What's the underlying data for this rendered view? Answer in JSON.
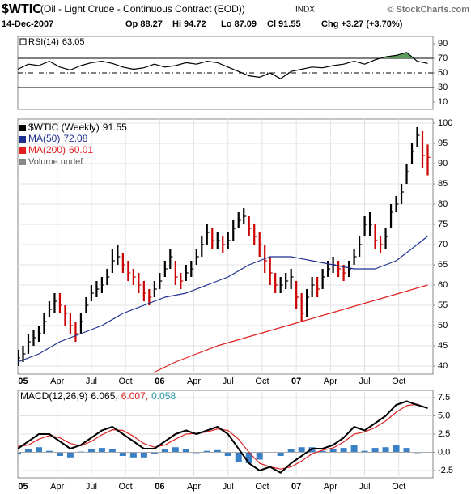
{
  "header": {
    "symbol": "$WTIC",
    "description": "(Oil - Light Crude - Continuous Contract (EOD))",
    "exchange": "INDX",
    "source": "© StockCharts.com",
    "date": "14-Dec-2007",
    "open": "Op 88.27",
    "high": "Hi 94.72",
    "low": "Lo 87.09",
    "close": "Cl 91.55",
    "change": "Chg +3.27 (+3.70%)"
  },
  "chart_data": [
    {
      "type": "line",
      "xlim": [
        -2,
        156
      ],
      "ylim": [
        0,
        100
      ],
      "yticks": [
        10,
        30,
        50,
        70,
        90
      ],
      "solid_levels": [
        30,
        70
      ],
      "dashed_levels": [
        50
      ],
      "fill_above": 70,
      "fill_color": "#5b9b5b",
      "series": [
        {
          "name": "RSI(14)",
          "label": "63.05",
          "color": "#000000",
          "x": [
            -2,
            2,
            6,
            10,
            14,
            18,
            22,
            26,
            30,
            34,
            38,
            42,
            46,
            50,
            54,
            58,
            62,
            66,
            70,
            74,
            78,
            82,
            86,
            90,
            94,
            98,
            102,
            106,
            110,
            114,
            118,
            122,
            126,
            130,
            134,
            138,
            142,
            146,
            150,
            154
          ],
          "values": [
            55,
            62,
            60,
            66,
            58,
            54,
            60,
            64,
            66,
            63,
            58,
            55,
            57,
            62,
            58,
            60,
            64,
            62,
            66,
            64,
            58,
            52,
            46,
            44,
            50,
            42,
            52,
            55,
            58,
            57,
            60,
            62,
            66,
            62,
            68,
            72,
            74,
            78,
            66,
            63.05
          ]
        }
      ]
    },
    {
      "type": "ohlc",
      "xlim": [
        -2,
        156
      ],
      "ylim": [
        38,
        101
      ],
      "yticks": [
        40,
        45,
        50,
        55,
        60,
        65,
        70,
        75,
        80,
        85,
        90,
        95,
        100
      ],
      "grid": true,
      "xticks": [
        {
          "value": 0,
          "label": "05"
        },
        {
          "value": 13,
          "label": "Apr"
        },
        {
          "value": 26,
          "label": "Jul"
        },
        {
          "value": 39,
          "label": "Oct"
        },
        {
          "value": 52,
          "label": "06"
        },
        {
          "value": 65,
          "label": "Apr"
        },
        {
          "value": 78,
          "label": "Jul"
        },
        {
          "value": 91,
          "label": "Oct"
        },
        {
          "value": 104,
          "label": "07"
        },
        {
          "value": 117,
          "label": "Apr"
        },
        {
          "value": 130,
          "label": "Jul"
        },
        {
          "value": 143,
          "label": "Oct"
        }
      ],
      "bars": {
        "name": "$WTIC (Weekly)",
        "label": "91.55",
        "up_color": "#000000",
        "down_color": "#cc0000",
        "x": [
          -2,
          0,
          2,
          4,
          6,
          8,
          10,
          12,
          14,
          16,
          18,
          20,
          22,
          24,
          26,
          28,
          30,
          32,
          34,
          36,
          38,
          40,
          42,
          44,
          46,
          48,
          50,
          52,
          54,
          56,
          58,
          60,
          62,
          64,
          66,
          68,
          70,
          72,
          74,
          76,
          78,
          80,
          82,
          84,
          86,
          88,
          90,
          92,
          94,
          96,
          98,
          100,
          102,
          104,
          106,
          108,
          110,
          112,
          114,
          116,
          118,
          120,
          122,
          124,
          126,
          128,
          130,
          132,
          134,
          136,
          138,
          140,
          142,
          144,
          146,
          148,
          150,
          152,
          154
        ],
        "high": [
          44,
          45,
          48,
          49,
          50,
          53,
          56,
          58,
          58,
          55,
          53,
          51,
          53,
          57,
          60,
          61,
          62,
          64,
          69,
          70,
          68,
          66,
          64,
          63,
          61,
          59,
          61,
          63,
          66,
          69,
          66,
          63,
          65,
          66,
          69,
          72,
          75,
          74,
          73,
          72,
          73,
          76,
          78,
          79,
          77,
          75,
          73,
          70,
          67,
          63,
          62,
          63,
          64,
          61,
          58,
          59,
          62,
          62,
          64,
          66,
          67,
          66,
          65,
          66,
          69,
          72,
          77,
          78,
          75,
          72,
          74,
          80,
          82,
          85,
          90,
          95,
          99,
          98,
          94.72
        ],
        "low": [
          40,
          41,
          43,
          45,
          46,
          48,
          52,
          53,
          53,
          50,
          48,
          46,
          48,
          53,
          56,
          57,
          58,
          60,
          63,
          65,
          63,
          61,
          60,
          58,
          56,
          55,
          57,
          59,
          62,
          64,
          60,
          59,
          61,
          62,
          65,
          67,
          70,
          69,
          69,
          68,
          69,
          71,
          74,
          75,
          72,
          70,
          67,
          63,
          60,
          58,
          58,
          59,
          59,
          54,
          51,
          52,
          57,
          57,
          59,
          62,
          63,
          62,
          61,
          62,
          65,
          67,
          72,
          72,
          69,
          68,
          69,
          74,
          78,
          80,
          85,
          90,
          94,
          89,
          87.09
        ],
        "values": [
          42,
          43,
          46,
          47,
          48,
          51,
          54,
          56,
          55,
          53,
          50,
          48,
          51,
          55,
          58,
          59,
          60,
          62,
          66,
          67,
          65,
          63,
          62,
          60,
          58,
          57,
          59,
          61,
          64,
          67,
          62,
          61,
          63,
          64,
          67,
          70,
          73,
          71,
          71,
          70,
          71,
          74,
          76,
          77,
          74,
          72,
          70,
          66,
          63,
          60,
          60,
          61,
          62,
          57,
          53,
          57,
          60,
          59,
          62,
          64,
          65,
          64,
          63,
          64,
          67,
          70,
          75,
          75,
          71,
          70,
          72,
          78,
          80,
          83,
          88,
          93,
          97,
          92,
          91.55
        ]
      },
      "series": [
        {
          "name": "MA(50)",
          "label": "72.08",
          "color": "#1f2f8f",
          "x": [
            -2,
            6,
            14,
            22,
            30,
            38,
            46,
            54,
            62,
            70,
            78,
            86,
            94,
            102,
            110,
            118,
            126,
            134,
            142,
            150,
            154
          ],
          "values": [
            41,
            43,
            46,
            48,
            50,
            53,
            55,
            57,
            58,
            60,
            62,
            65,
            67,
            67,
            66,
            65,
            64,
            64,
            66,
            70,
            72.08
          ]
        },
        {
          "name": "MA(200)",
          "label": "60.01",
          "color": "#e02020",
          "x": [
            50,
            58,
            66,
            74,
            82,
            90,
            98,
            106,
            114,
            122,
            130,
            138,
            146,
            154
          ],
          "values": [
            38.5,
            41,
            43,
            45,
            46.5,
            48,
            49.5,
            51,
            52.5,
            54,
            55.5,
            57,
            58.5,
            60.01
          ]
        }
      ],
      "volume_label": "Volume undef"
    },
    {
      "type": "line",
      "title": "MACD(12,26,9)",
      "xlim": [
        -2,
        156
      ],
      "ylim": [
        -3.5,
        8.5
      ],
      "grid": true,
      "yticks": [
        {
          "value": -2.5,
          "label": "-2.5"
        },
        {
          "value": 0,
          "label": "0.0"
        },
        {
          "value": 2.5,
          "label": "2.5"
        },
        {
          "value": 5,
          "label": "5.0"
        },
        {
          "value": 7.5,
          "label": "7.5"
        }
      ],
      "xticks": [
        {
          "value": 0,
          "label": "05"
        },
        {
          "value": 13,
          "label": "Apr"
        },
        {
          "value": 26,
          "label": "Jul"
        },
        {
          "value": 39,
          "label": "Oct"
        },
        {
          "value": 52,
          "label": "06"
        },
        {
          "value": 65,
          "label": "Apr"
        },
        {
          "value": 78,
          "label": "Jul"
        },
        {
          "value": 91,
          "label": "Oct"
        },
        {
          "value": 104,
          "label": "07"
        },
        {
          "value": 117,
          "label": "Apr"
        },
        {
          "value": 130,
          "label": "Jul"
        },
        {
          "value": 143,
          "label": "Oct"
        }
      ],
      "series": [
        {
          "label": "0.058",
          "style": "bar",
          "color": "#3a80c4",
          "x": [
            -2,
            2,
            6,
            10,
            14,
            18,
            22,
            26,
            30,
            34,
            38,
            42,
            46,
            50,
            54,
            58,
            62,
            66,
            70,
            74,
            78,
            82,
            86,
            90,
            94,
            98,
            102,
            106,
            110,
            114,
            118,
            122,
            126,
            130,
            134,
            138,
            142,
            146,
            150,
            154
          ],
          "values": [
            -0.3,
            0.5,
            0.7,
            0.2,
            -0.5,
            -0.7,
            0.1,
            0.5,
            0.6,
            0.4,
            -0.5,
            -0.7,
            -0.7,
            -0.2,
            0.5,
            0.7,
            0.5,
            -0.1,
            0.2,
            0.3,
            -0.5,
            -1.3,
            -1.5,
            -1.0,
            0,
            -0.5,
            0.5,
            0.7,
            0.7,
            0.2,
            0.4,
            0.6,
            1.0,
            0.2,
            0.6,
            0.7,
            1.0,
            0.6,
            -0.1,
            0.058
          ]
        },
        {
          "label": "6.007,",
          "color": "#dd2222",
          "width": 1.2,
          "x": [
            -2,
            2,
            6,
            10,
            14,
            18,
            22,
            26,
            30,
            34,
            38,
            42,
            46,
            50,
            54,
            58,
            62,
            66,
            70,
            74,
            78,
            82,
            86,
            90,
            94,
            98,
            102,
            106,
            110,
            114,
            118,
            122,
            126,
            130,
            134,
            138,
            142,
            146,
            150,
            154
          ],
          "values": [
            0.8,
            1.0,
            1.8,
            2.3,
            2.0,
            1.2,
            0.9,
            1.5,
            2.4,
            3.1,
            3.0,
            2.2,
            1.2,
            0.7,
            1.0,
            1.8,
            2.5,
            2.6,
            2.8,
            3.2,
            3.0,
            1.8,
            0,
            -1.5,
            -2.0,
            -2.3,
            -2.0,
            -1.2,
            -0.2,
            0.3,
            0.6,
            1.4,
            2.5,
            2.8,
            3.4,
            4.3,
            5.5,
            6.4,
            6.6,
            6.007
          ]
        },
        {
          "label": "6.065,",
          "color": "#000000",
          "width": 2,
          "x": [
            -2,
            2,
            6,
            10,
            14,
            18,
            22,
            26,
            30,
            34,
            38,
            42,
            46,
            50,
            54,
            58,
            62,
            66,
            70,
            74,
            78,
            82,
            86,
            90,
            94,
            98,
            102,
            106,
            110,
            114,
            118,
            122,
            126,
            130,
            134,
            138,
            142,
            146,
            150,
            154
          ],
          "values": [
            0.5,
            1.5,
            2.5,
            2.5,
            1.5,
            0.5,
            1.0,
            2.0,
            3.0,
            3.5,
            2.5,
            1.5,
            0.5,
            0.5,
            1.5,
            2.5,
            3.0,
            2.5,
            3.0,
            3.5,
            2.5,
            0.5,
            -1.5,
            -2.5,
            -2.0,
            -2.8,
            -1.5,
            -0.5,
            0.5,
            0.5,
            1.0,
            2.0,
            3.5,
            3.0,
            4.0,
            5.0,
            6.5,
            7.0,
            6.5,
            6.065
          ]
        }
      ]
    }
  ]
}
